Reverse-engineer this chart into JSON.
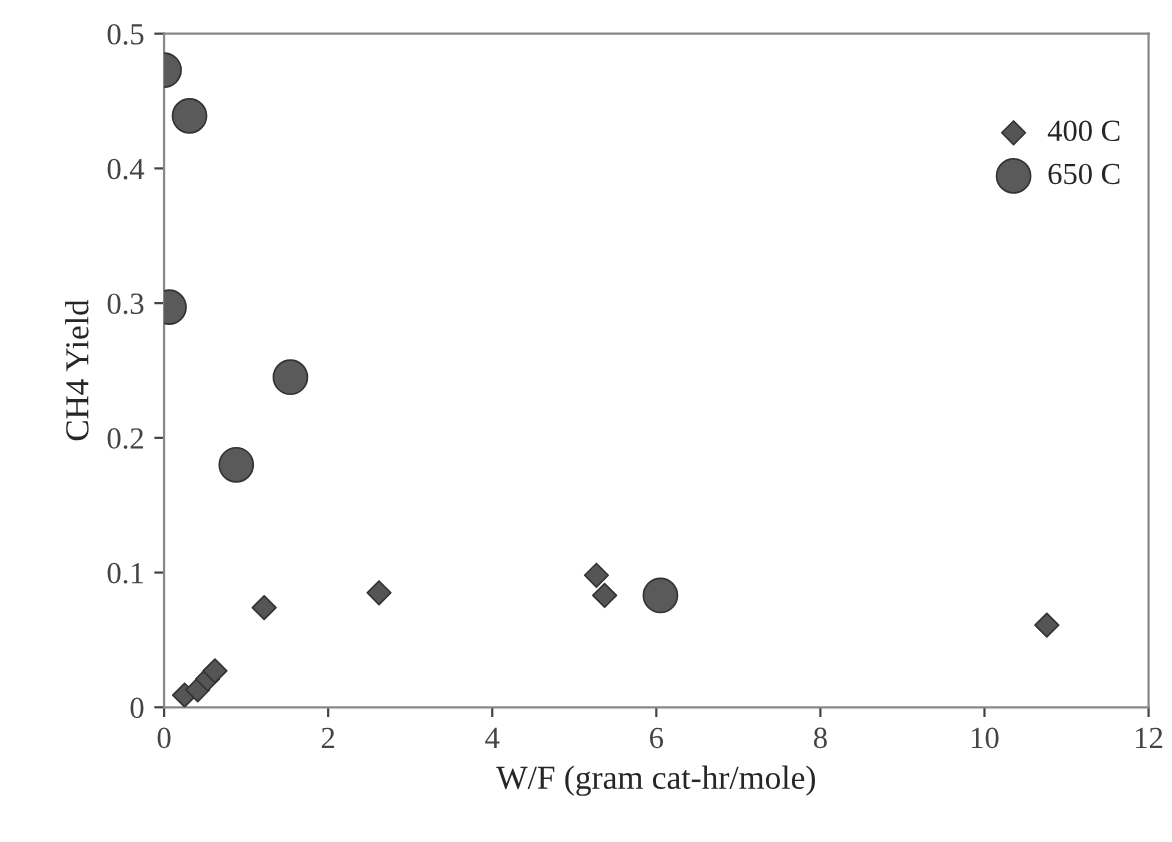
{
  "chart_data": {
    "type": "scatter",
    "xlabel": "W/F (gram cat-hr/mole)",
    "ylabel": "CH4 Yield",
    "xlim": [
      0,
      12
    ],
    "xticks": [
      0,
      2,
      4,
      6,
      8,
      10,
      12
    ],
    "ylim": [
      0,
      0.5
    ],
    "yticks": [
      0,
      0.1,
      0.2,
      0.3,
      0.4,
      0.5
    ],
    "grid": false,
    "legend": "right",
    "series": [
      {
        "name": "400 C",
        "color": "#555555",
        "marker": "diamond",
        "x": [
          0.25,
          0.41,
          0.53,
          0.62,
          1.22,
          2.62,
          5.27,
          5.37,
          10.76
        ],
        "values": [
          0.009,
          0.013,
          0.021,
          0.027,
          0.074,
          0.085,
          0.098,
          0.083,
          0.061
        ]
      },
      {
        "name": "650 C",
        "color": "#5a5a5a",
        "marker": "circle",
        "x": [
          0,
          0.31,
          0.06,
          1.54,
          0.88,
          6.05
        ],
        "values": [
          0.473,
          0.439,
          0.297,
          0.245,
          0.18,
          0.083
        ]
      }
    ]
  }
}
